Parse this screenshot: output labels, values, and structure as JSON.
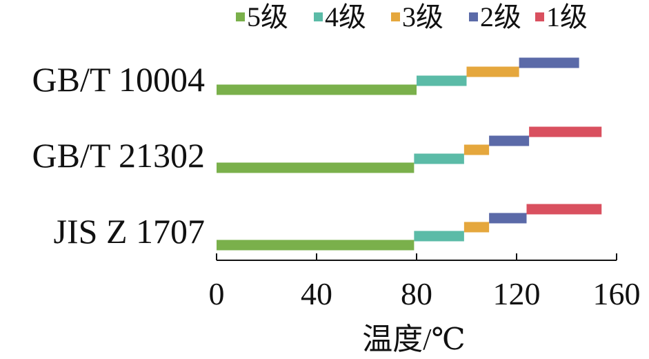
{
  "chart_data": {
    "type": "bar",
    "subtype": "horizontal-step-ranges",
    "xlabel": "温度/℃",
    "xlim": [
      0,
      160
    ],
    "xticks": [
      0,
      40,
      80,
      120,
      160
    ],
    "grid": false,
    "legend_position": "top",
    "legend_order": [
      "5级",
      "4级",
      "3级",
      "2级",
      "1级"
    ],
    "colors": {
      "5级": "#7ab04b",
      "4级": "#5bbba7",
      "3级": "#e5a73d",
      "2级": "#5b6aa8",
      "1级": "#d9505f"
    },
    "categories": [
      "GB/T 10004",
      "GB/T 21302",
      "JIS Z 1707"
    ],
    "rows": [
      {
        "category": "GB/T 10004",
        "segments": [
          {
            "grade": "5级",
            "start": 0,
            "end": 80
          },
          {
            "grade": "4级",
            "start": 80,
            "end": 100
          },
          {
            "grade": "3级",
            "start": 100,
            "end": 121
          },
          {
            "grade": "2级",
            "start": 121,
            "end": 145
          }
        ]
      },
      {
        "category": "GB/T 21302",
        "segments": [
          {
            "grade": "5级",
            "start": 0,
            "end": 79
          },
          {
            "grade": "4级",
            "start": 79,
            "end": 99
          },
          {
            "grade": "3级",
            "start": 99,
            "end": 109
          },
          {
            "grade": "2级",
            "start": 109,
            "end": 125
          },
          {
            "grade": "1级",
            "start": 125,
            "end": 154
          }
        ]
      },
      {
        "category": "JIS Z 1707",
        "segments": [
          {
            "grade": "5级",
            "start": 0,
            "end": 79
          },
          {
            "grade": "4级",
            "start": 79,
            "end": 99
          },
          {
            "grade": "3级",
            "start": 99,
            "end": 109
          },
          {
            "grade": "2级",
            "start": 109,
            "end": 124
          },
          {
            "grade": "1级",
            "start": 124,
            "end": 154
          }
        ]
      }
    ]
  }
}
